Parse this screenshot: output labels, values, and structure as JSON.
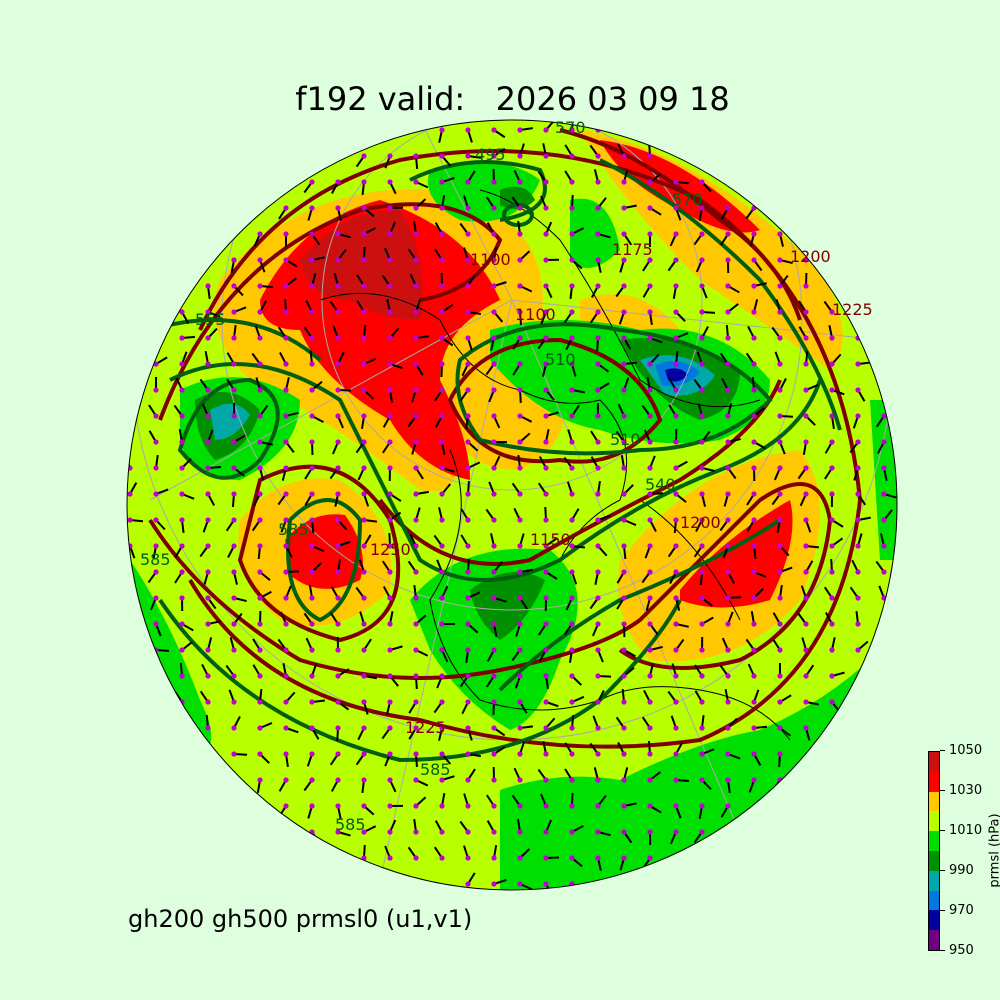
{
  "title": "f192 valid:   2026 03 09 18",
  "subtitle": "gh200 gh500 prmsl0 (u1,v1)",
  "colorbar": {
    "label": "prmsl (hPa)",
    "ticks": [
      "950",
      "970",
      "990",
      "1010",
      "1030",
      "1050"
    ],
    "levels": [
      950,
      960,
      970,
      980,
      990,
      1000,
      1010,
      1020,
      1030,
      1040,
      1050
    ],
    "colors": [
      "#700080",
      "#0000a0",
      "#0078e0",
      "#00a8a8",
      "#009000",
      "#00e000",
      "#b8ff00",
      "#ffc800",
      "#ff0000",
      "#cc1010"
    ]
  },
  "contour_colors": {
    "gh200": "#800000",
    "gh500": "#006010",
    "coastline": "#000000",
    "wind_barbs": "#000000",
    "barb_dots": "#c000d0",
    "background": "#ddffdd"
  },
  "contour_labels": {
    "gh200": [
      "1100",
      "1100",
      "1150",
      "1175",
      "1200",
      "1200",
      "1225",
      "1250",
      "1225"
    ],
    "gh500": [
      "570",
      "495",
      "510",
      "570",
      "510",
      "540",
      "585",
      "585",
      "585",
      "555",
      "585"
    ]
  }
}
